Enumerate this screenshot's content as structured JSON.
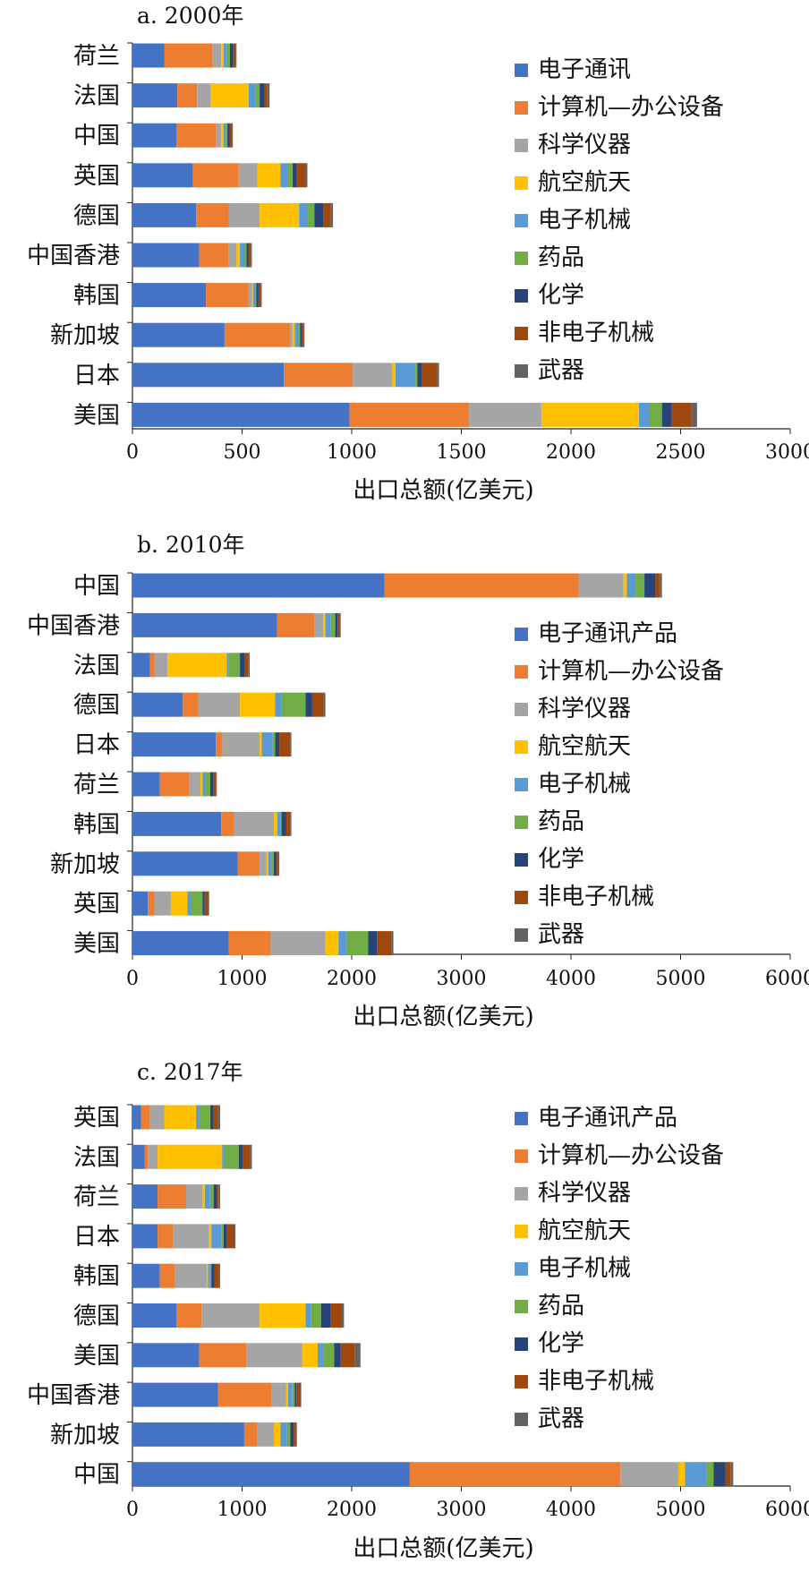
{
  "chart_data": [
    {
      "type": "bar",
      "orientation": "horizontal",
      "stacked": true,
      "title": "a. 2000年",
      "xlabel": "出口总额(亿美元)",
      "ylabel": "",
      "xlim": [
        0,
        3000
      ],
      "xticks": [
        0,
        500,
        1000,
        1500,
        2000,
        2500,
        3000
      ],
      "grid": false,
      "legend_position": "right",
      "categories": [
        "荷兰",
        "法国",
        "中国",
        "英国",
        "德国",
        "中国香港",
        "韩国",
        "新加坡",
        "日本",
        "美国"
      ],
      "series": [
        {
          "name": "电子通讯",
          "values": [
            145,
            205,
            200,
            275,
            290,
            305,
            335,
            420,
            690,
            990
          ]
        },
        {
          "name": "计算机—办公设备",
          "values": [
            220,
            90,
            180,
            210,
            150,
            135,
            195,
            300,
            315,
            545
          ]
        },
        {
          "name": "科学仪器",
          "values": [
            40,
            60,
            25,
            85,
            140,
            35,
            15,
            10,
            180,
            330
          ]
        },
        {
          "name": "航空航天",
          "values": [
            10,
            175,
            10,
            105,
            180,
            15,
            5,
            10,
            15,
            445
          ]
        },
        {
          "name": "电子机械",
          "values": [
            15,
            30,
            10,
            35,
            40,
            20,
            10,
            15,
            90,
            45
          ]
        },
        {
          "name": "药品",
          "values": [
            15,
            20,
            8,
            20,
            30,
            10,
            5,
            10,
            10,
            60
          ]
        },
        {
          "name": "化学",
          "values": [
            15,
            20,
            10,
            20,
            40,
            10,
            10,
            10,
            20,
            45
          ]
        },
        {
          "name": "非电子机械",
          "values": [
            10,
            15,
            10,
            40,
            35,
            10,
            10,
            5,
            70,
            90
          ]
        },
        {
          "name": "武器",
          "values": [
            5,
            10,
            5,
            8,
            10,
            5,
            5,
            5,
            8,
            25
          ]
        }
      ]
    },
    {
      "type": "bar",
      "orientation": "horizontal",
      "stacked": true,
      "title": "b. 2010年",
      "xlabel": "出口总额(亿美元)",
      "ylabel": "",
      "xlim": [
        0,
        6000
      ],
      "xticks": [
        0,
        1000,
        2000,
        3000,
        4000,
        5000,
        6000
      ],
      "grid": false,
      "legend_position": "right",
      "categories": [
        "中国",
        "中国香港",
        "法国",
        "德国",
        "日本",
        "荷兰",
        "韩国",
        "新加坡",
        "英国",
        "美国"
      ],
      "series": [
        {
          "name": "电子通讯产品",
          "values": [
            2300,
            1320,
            160,
            460,
            760,
            250,
            810,
            960,
            140,
            880
          ]
        },
        {
          "name": "计算机—办公设备",
          "values": [
            1770,
            340,
            40,
            140,
            60,
            270,
            120,
            200,
            60,
            380
          ]
        },
        {
          "name": "科学仪器",
          "values": [
            410,
            80,
            120,
            380,
            340,
            100,
            360,
            60,
            150,
            500
          ]
        },
        {
          "name": "航空航天",
          "values": [
            30,
            20,
            540,
            320,
            20,
            20,
            30,
            20,
            150,
            120
          ]
        },
        {
          "name": "电子机械",
          "values": [
            80,
            50,
            20,
            60,
            100,
            30,
            30,
            30,
            30,
            70
          ]
        },
        {
          "name": "药品",
          "values": [
            80,
            40,
            100,
            220,
            20,
            40,
            10,
            20,
            110,
            200
          ]
        },
        {
          "name": "化学",
          "values": [
            100,
            20,
            40,
            60,
            40,
            30,
            40,
            20,
            20,
            80
          ]
        },
        {
          "name": "非电子机械",
          "values": [
            40,
            20,
            40,
            100,
            100,
            20,
            40,
            20,
            30,
            130
          ]
        },
        {
          "name": "武器",
          "values": [
            20,
            10,
            10,
            20,
            10,
            10,
            10,
            10,
            10,
            20
          ]
        }
      ]
    },
    {
      "type": "bar",
      "orientation": "horizontal",
      "stacked": true,
      "title": "c. 2017年",
      "xlabel": "出口总额(亿美元)",
      "ylabel": "",
      "xlim": [
        0,
        6000
      ],
      "xticks": [
        0,
        1000,
        2000,
        3000,
        4000,
        5000,
        6000
      ],
      "grid": false,
      "legend_position": "right",
      "categories": [
        "英国",
        "法国",
        "荷兰",
        "日本",
        "韩国",
        "德国",
        "美国",
        "中国香港",
        "新加坡",
        "中国"
      ],
      "series": [
        {
          "name": "电子通讯产品",
          "values": [
            80,
            110,
            230,
            230,
            250,
            400,
            610,
            780,
            1020,
            2530
          ]
        },
        {
          "name": "计算机—办公设备",
          "values": [
            80,
            30,
            260,
            140,
            140,
            230,
            430,
            490,
            120,
            1920
          ]
        },
        {
          "name": "科学仪器",
          "values": [
            130,
            90,
            150,
            330,
            290,
            530,
            510,
            130,
            150,
            530
          ]
        },
        {
          "name": "航空航天",
          "values": [
            290,
            590,
            20,
            20,
            10,
            420,
            140,
            20,
            60,
            60
          ]
        },
        {
          "name": "电子机械",
          "values": [
            30,
            20,
            50,
            90,
            20,
            50,
            50,
            40,
            60,
            200
          ]
        },
        {
          "name": "药品",
          "values": [
            100,
            130,
            30,
            20,
            10,
            90,
            100,
            20,
            30,
            60
          ]
        },
        {
          "name": "化学",
          "values": [
            30,
            40,
            30,
            30,
            30,
            90,
            60,
            20,
            30,
            110
          ]
        },
        {
          "name": "非电子机械",
          "values": [
            40,
            60,
            20,
            70,
            40,
            100,
            130,
            30,
            20,
            50
          ]
        },
        {
          "name": "武器",
          "values": [
            20,
            20,
            10,
            10,
            10,
            20,
            50,
            10,
            10,
            20
          ]
        }
      ]
    }
  ],
  "colors": [
    "#4472C4",
    "#ED7D31",
    "#A5A5A5",
    "#FFC000",
    "#5B9BD5",
    "#70AD47",
    "#264478",
    "#9E480E",
    "#636363"
  ]
}
